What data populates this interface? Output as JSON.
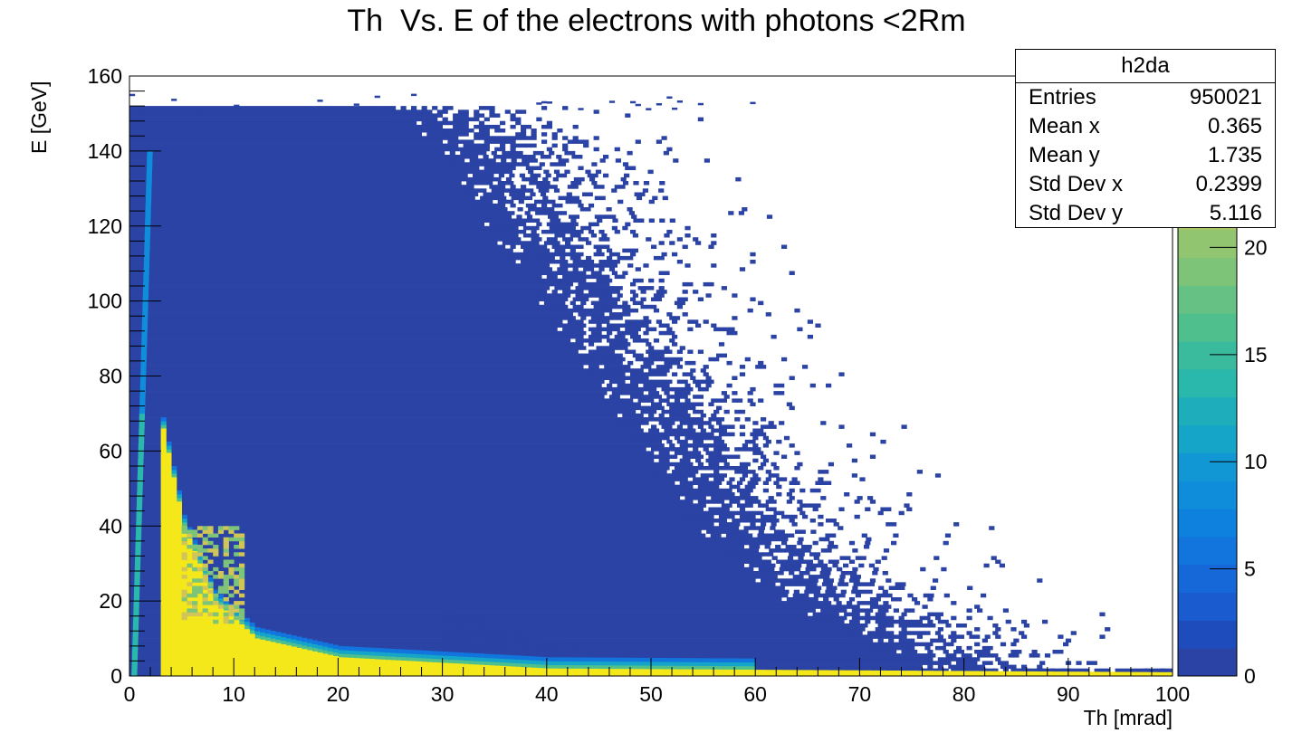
{
  "chart_data": {
    "type": "heatmap",
    "title": "Th  Vs. E of the electrons with photons <2Rm",
    "xlabel": "Th [mrad]",
    "ylabel": "E [GeV]",
    "xlim": [
      0,
      100
    ],
    "ylim": [
      0,
      160
    ],
    "x_ticks": [
      "0",
      "10",
      "20",
      "30",
      "40",
      "50",
      "60",
      "70",
      "80",
      "90",
      "100"
    ],
    "y_ticks": [
      "0",
      "20",
      "40",
      "60",
      "80",
      "100",
      "120",
      "140",
      "160"
    ],
    "colorbar": {
      "range": [
        0,
        28
      ],
      "ticks": [
        "0",
        "5",
        "10",
        "15",
        "20",
        "25"
      ],
      "palette": [
        "#2a43a4",
        "#1a5ccf",
        "#1175dd",
        "#0f8ddb",
        "#14a5c8",
        "#2ab7ac",
        "#4fbf8e",
        "#7dc479",
        "#a8c667",
        "#d2c558",
        "#f5e81a"
      ]
    },
    "description_regions": {
      "dense_core_max_theta_at_E": [
        [
          0,
          85
        ],
        [
          20,
          70
        ],
        [
          40,
          62
        ],
        [
          80,
          52
        ],
        [
          120,
          42
        ],
        [
          140,
          38
        ],
        [
          150,
          33
        ]
      ],
      "yellow_ridge_E_at_theta": [
        [
          3,
          66
        ],
        [
          5,
          40
        ],
        [
          8,
          20
        ],
        [
          12,
          10
        ],
        [
          20,
          5
        ],
        [
          40,
          2
        ],
        [
          100,
          1
        ]
      ]
    },
    "stats": {
      "name": "h2da",
      "entries": "950021",
      "mean_x": "0.365",
      "mean_y": "1.735",
      "std_dev_x": "0.2399",
      "std_dev_y": "5.116"
    }
  },
  "stats_labels": {
    "entries": "Entries",
    "mean_x": "Mean x",
    "mean_y": "Mean y",
    "std_dev_x": "Std Dev x",
    "std_dev_y": "Std Dev y"
  }
}
